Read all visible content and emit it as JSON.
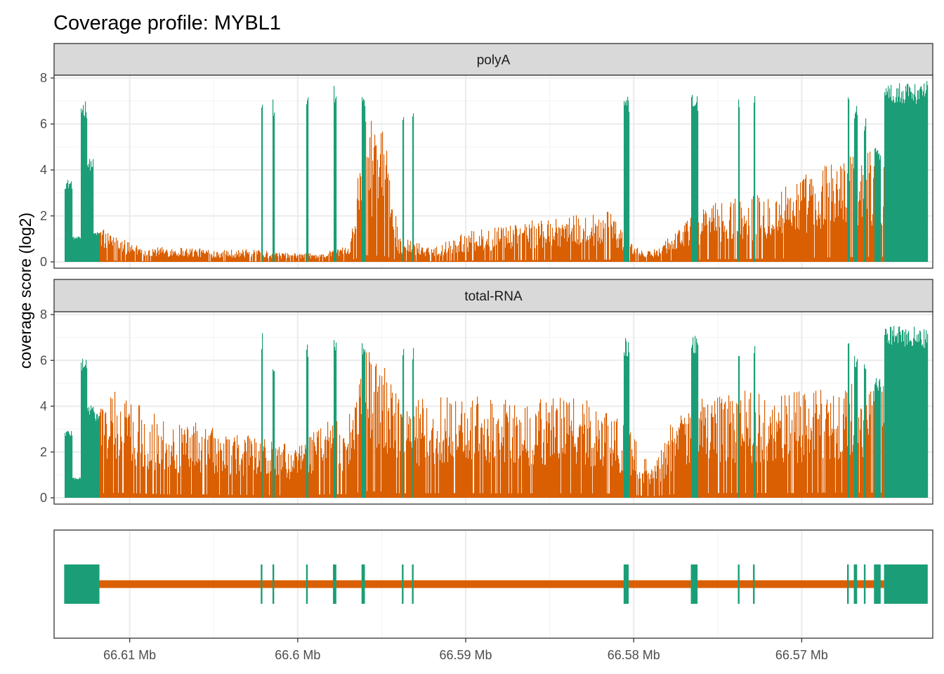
{
  "chart_data": {
    "type": "area",
    "title": "Coverage profile: MYBL1",
    "ylabel": "coverage score (log2)",
    "xlabel": "",
    "x_unit": "Mb",
    "x_reversed": true,
    "xlim": [
      66.6145,
      66.5622
    ],
    "ylim": [
      0,
      8.4
    ],
    "x_ticks": [
      66.61,
      66.6,
      66.59,
      66.58,
      66.57
    ],
    "x_tick_labels": [
      "66.61 Mb",
      "66.6 Mb",
      "66.59 Mb",
      "66.58 Mb",
      "66.57 Mb"
    ],
    "y_ticks": [
      0,
      2,
      4,
      6,
      8
    ],
    "y_tick_labels": [
      "0",
      "2",
      "4",
      "6",
      "8"
    ],
    "grid": true,
    "colors": {
      "exon": "#1B9E77",
      "intron": "#D95F02",
      "strip": "#D9D9D9",
      "grid": "#EBEBEB"
    },
    "gene_model": {
      "intron_span": [
        66.6122,
        66.5651
      ],
      "exons": [
        [
          66.6139,
          66.6118
        ],
        [
          66.6022,
          66.6021
        ],
        [
          66.6015,
          66.6014
        ],
        [
          66.5995,
          66.5994
        ],
        [
          66.5979,
          66.5977
        ],
        [
          66.5962,
          66.596
        ],
        [
          66.5938,
          66.5937
        ],
        [
          66.5932,
          66.5931
        ],
        [
          66.5806,
          66.5803
        ],
        [
          66.5766,
          66.5762
        ],
        [
          66.5738,
          66.5737
        ],
        [
          66.5729,
          66.5728
        ],
        [
          66.5673,
          66.5672
        ],
        [
          66.5669,
          66.5667
        ],
        [
          66.5663,
          66.5662
        ],
        [
          66.5657,
          66.5653
        ],
        [
          66.5651,
          66.5625
        ]
      ]
    },
    "panels": [
      {
        "name": "polyA",
        "exon_peaks": [
          [
            66.6137,
            3.6
          ],
          [
            66.6132,
            1.1
          ],
          [
            66.6127,
            7.1
          ],
          [
            66.6124,
            4.5
          ],
          [
            66.612,
            1.3
          ],
          [
            66.6022,
            7.3
          ],
          [
            66.6015,
            7.2
          ],
          [
            66.5995,
            7.5
          ],
          [
            66.5978,
            7.7
          ],
          [
            66.5961,
            7.6
          ],
          [
            66.5938,
            6.9
          ],
          [
            66.5931,
            6.9
          ],
          [
            66.5805,
            7.3
          ],
          [
            66.5764,
            7.3
          ],
          [
            66.5737,
            7.3
          ],
          [
            66.5728,
            7.6
          ],
          [
            66.5673,
            7.9
          ],
          [
            66.5668,
            7.0
          ],
          [
            66.5663,
            6.4
          ],
          [
            66.5655,
            5.0
          ],
          [
            66.5645,
            7.8
          ],
          [
            66.5635,
            7.8
          ],
          [
            66.5628,
            7.9
          ]
        ],
        "intron_levels": [
          [
            66.6122,
            1.6
          ],
          [
            66.6105,
            0.9
          ],
          [
            66.609,
            0.6
          ],
          [
            66.607,
            0.6
          ],
          [
            66.605,
            0.5
          ],
          [
            66.603,
            0.5
          ],
          [
            66.6005,
            0.35
          ],
          [
            66.5985,
            0.35
          ],
          [
            66.597,
            0.7
          ],
          [
            66.596,
            5.8
          ],
          [
            66.5948,
            5.1
          ],
          [
            66.594,
            1.0
          ],
          [
            66.592,
            0.6
          ],
          [
            66.59,
            1.2
          ],
          [
            66.587,
            1.5
          ],
          [
            66.585,
            1.8
          ],
          [
            66.583,
            1.9
          ],
          [
            66.5815,
            2.0
          ],
          [
            66.58,
            0.6
          ],
          [
            66.579,
            0.4
          ],
          [
            66.5775,
            1.3
          ],
          [
            66.5755,
            2.4
          ],
          [
            66.573,
            2.6
          ],
          [
            66.571,
            3.1
          ],
          [
            66.569,
            3.8
          ],
          [
            66.5675,
            4.2
          ],
          [
            66.5655,
            4.5
          ]
        ]
      },
      {
        "name": "total-RNA",
        "exon_peaks": [
          [
            66.6137,
            3.0
          ],
          [
            66.6132,
            0.9
          ],
          [
            66.6127,
            6.2
          ],
          [
            66.6124,
            4.1
          ],
          [
            66.612,
            3.8
          ],
          [
            66.6022,
            7.2
          ],
          [
            66.6015,
            6.1
          ],
          [
            66.5995,
            6.9
          ],
          [
            66.5978,
            7.3
          ],
          [
            66.5961,
            7.1
          ],
          [
            66.5938,
            6.6
          ],
          [
            66.5931,
            6.6
          ],
          [
            66.5805,
            7.0
          ],
          [
            66.5764,
            7.1
          ],
          [
            66.5737,
            6.9
          ],
          [
            66.5728,
            7.0
          ],
          [
            66.5673,
            7.6
          ],
          [
            66.5668,
            6.4
          ],
          [
            66.5663,
            6.0
          ],
          [
            66.5655,
            5.3
          ],
          [
            66.5645,
            7.5
          ],
          [
            66.5635,
            7.5
          ],
          [
            66.5628,
            7.4
          ]
        ],
        "intron_levels": [
          [
            66.6122,
            4.0
          ],
          [
            66.6105,
            4.3
          ],
          [
            66.609,
            3.6
          ],
          [
            66.6075,
            2.9
          ],
          [
            66.606,
            3.1
          ],
          [
            66.6045,
            2.6
          ],
          [
            66.603,
            2.6
          ],
          [
            66.6015,
            2.3
          ],
          [
            66.6,
            2.0
          ],
          [
            66.5985,
            3.0
          ],
          [
            66.597,
            3.2
          ],
          [
            66.596,
            5.9
          ],
          [
            66.5948,
            5.3
          ],
          [
            66.594,
            3.9
          ],
          [
            66.592,
            4.0
          ],
          [
            66.59,
            4.1
          ],
          [
            66.587,
            3.9
          ],
          [
            66.585,
            4.0
          ],
          [
            66.583,
            4.0
          ],
          [
            66.5815,
            3.7
          ],
          [
            66.58,
            2.4
          ],
          [
            66.579,
            1.2
          ],
          [
            66.5775,
            3.4
          ],
          [
            66.5755,
            4.1
          ],
          [
            66.573,
            4.3
          ],
          [
            66.571,
            4.1
          ],
          [
            66.569,
            4.5
          ],
          [
            66.5675,
            4.7
          ],
          [
            66.5655,
            4.5
          ]
        ]
      }
    ]
  }
}
